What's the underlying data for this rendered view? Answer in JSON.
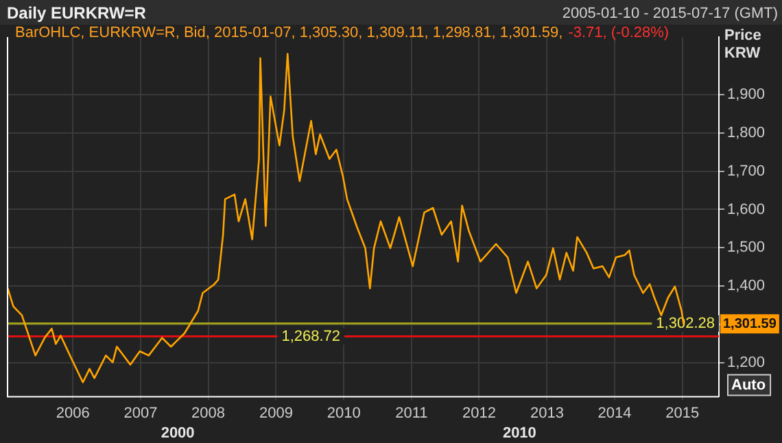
{
  "chart_data": {
    "type": "line",
    "title": "Daily EURKRW=R",
    "subtitle": "2005-01-10 - 2015-07-17 (GMT)",
    "ylabel": "Price KRW",
    "x": [
      "2005-01-15",
      "2005-02-14",
      "2005-04-01",
      "2005-06-13",
      "2005-08-03",
      "2005-09-09",
      "2005-10-01",
      "2005-10-27",
      "2005-12-28",
      "2006-02-24",
      "2006-04-01",
      "2006-04-27",
      "2006-06-28",
      "2006-08-04",
      "2006-08-26",
      "2006-11-07",
      "2006-12-28",
      "2007-02-14",
      "2007-04-27",
      "2007-06-14",
      "2007-08-26",
      "2007-11-07",
      "2007-12-02",
      "2008-02-03",
      "2008-02-24",
      "2008-03-21",
      "2008-04-01",
      "2008-05-22",
      "2008-06-13",
      "2008-07-19",
      "2008-08-25",
      "2008-10-01",
      "2008-10-08",
      "2008-11-06",
      "2008-12-02",
      "2009-01-19",
      "2009-02-14",
      "2009-03-04",
      "2009-04-01",
      "2009-05-08",
      "2009-07-09",
      "2009-08-03",
      "2009-08-26",
      "2009-10-16",
      "2009-11-22",
      "2009-12-28",
      "2010-01-19",
      "2010-03-11",
      "2010-04-27",
      "2010-05-22",
      "2010-06-13",
      "2010-07-19",
      "2010-09-09",
      "2010-10-27",
      "2011-01-08",
      "2011-03-11",
      "2011-04-27",
      "2011-06-13",
      "2011-08-03",
      "2011-09-09",
      "2011-10-01",
      "2011-11-06",
      "2012-01-08",
      "2012-04-01",
      "2012-06-03",
      "2012-07-19",
      "2012-09-20",
      "2012-11-06",
      "2012-12-28",
      "2013-02-03",
      "2013-03-11",
      "2013-04-16",
      "2013-05-22",
      "2013-06-13",
      "2013-08-03",
      "2013-09-09",
      "2013-10-27",
      "2013-12-02",
      "2014-01-08",
      "2014-02-24",
      "2014-03-21",
      "2014-04-16",
      "2014-06-03",
      "2014-07-09",
      "2014-08-03",
      "2014-09-09",
      "2014-10-16",
      "2014-11-22",
      "2014-12-28",
      "2015-01-07"
    ],
    "series": [
      {
        "color": "#ffa500",
        "values": [
          1394,
          1347,
          1324,
          1219,
          1266,
          1289,
          1249,
          1271,
          1207,
          1149,
          1184,
          1160,
          1219,
          1201,
          1242,
          1195,
          1230,
          1219,
          1265,
          1242,
          1277,
          1335,
          1382,
          1405,
          1417,
          1534,
          1627,
          1639,
          1569,
          1627,
          1522,
          1732,
          1995,
          1557,
          1895,
          1767,
          1860,
          2006,
          1790,
          1674,
          1831,
          1744,
          1796,
          1732,
          1756,
          1685,
          1627,
          1557,
          1499,
          1394,
          1499,
          1569,
          1499,
          1580,
          1452,
          1592,
          1604,
          1534,
          1569,
          1464,
          1610,
          1545,
          1464,
          1510,
          1475,
          1382,
          1464,
          1394,
          1429,
          1499,
          1417,
          1487,
          1440,
          1528,
          1487,
          1446,
          1452,
          1423,
          1475,
          1481,
          1493,
          1429,
          1382,
          1405,
          1370,
          1324,
          1370,
          1399,
          1335,
          1302
        ]
      }
    ],
    "xlim": [
      "2005-01-10",
      "2015-07-17"
    ],
    "xticks": [
      {
        "value": "2006-01-01",
        "label": "2006"
      },
      {
        "value": "2007-01-01",
        "label": "2007"
      },
      {
        "value": "2008-01-01",
        "label": "2008"
      },
      {
        "value": "2009-01-01",
        "label": "2009"
      },
      {
        "value": "2010-01-01",
        "label": "2010"
      },
      {
        "value": "2011-01-01",
        "label": "2011"
      },
      {
        "value": "2012-01-01",
        "label": "2012"
      },
      {
        "value": "2013-01-01",
        "label": "2013"
      },
      {
        "value": "2014-01-01",
        "label": "2014"
      },
      {
        "value": "2015-01-01",
        "label": "2015"
      }
    ],
    "ylim": [
      1113,
      2050
    ],
    "yticks": [
      {
        "value": 1200,
        "label": "1,200"
      },
      {
        "value": 1300,
        "label": null
      },
      {
        "value": 1400,
        "label": "1,400"
      },
      {
        "value": 1500,
        "label": "1,500"
      },
      {
        "value": 1600,
        "label": "1,600"
      },
      {
        "value": 1700,
        "label": "1,700"
      },
      {
        "value": 1800,
        "label": "1,800"
      },
      {
        "value": 1900,
        "label": "1,900"
      }
    ],
    "grid": true,
    "ref_lines": [
      {
        "axis": "y",
        "value": 1302.28,
        "label": "1,302.28",
        "color": "#a3a31a"
      },
      {
        "axis": "y",
        "value": 1268.72,
        "label": "1,268.72",
        "color": "#e01010"
      }
    ],
    "annotations": [
      "BarOHLC, EURKRW=R, Bid, 2015-01-07, 1,305.30, 1,309.11, 1,298.81, 1,301.59,",
      "-3.71, (-0.28%)",
      "Auto",
      "2000",
      "2010",
      {
        "text": "1,301.59",
        "y": 1301.59
      }
    ]
  }
}
